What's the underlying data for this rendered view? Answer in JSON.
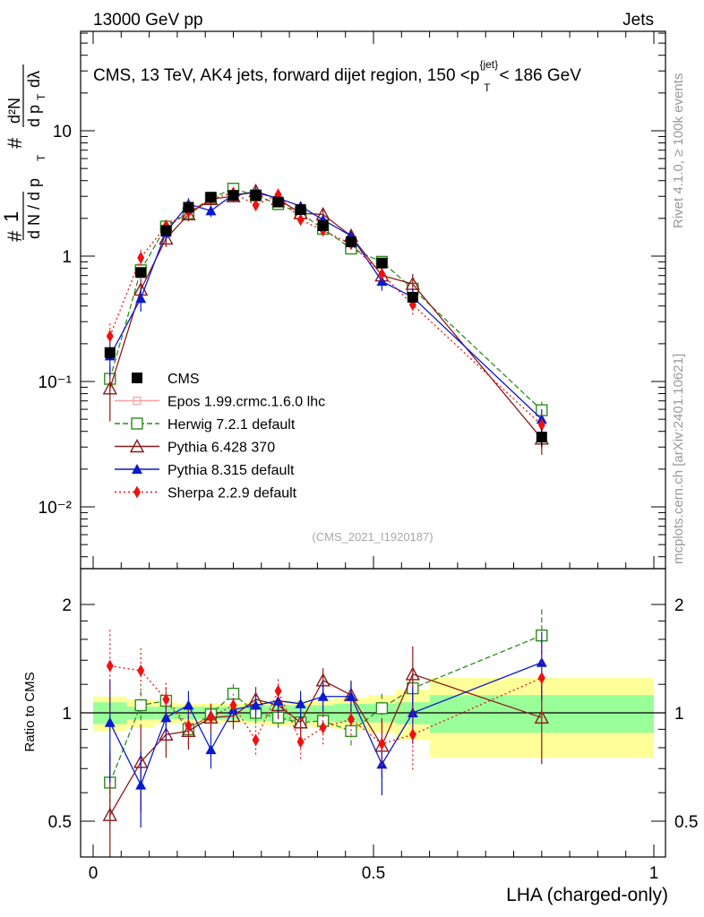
{
  "header": {
    "left": "13000 GeV pp",
    "right": "Jets",
    "plot_title": "CMS, 13 TeV, AK4 jets, forward dijet region, 150 <p",
    "title_sup": "{jet}",
    "title_sub": "T",
    "title_end": "< 186 GeV",
    "watermark": "(CMS_2021_I1920187)",
    "side_rivet": "Rivet 4.1.0, ≥ 100k events",
    "side_mcplots": "mcplots.cern.ch [arXiv:2401.10621]"
  },
  "axes": {
    "ylabel_top": "#  1 / dN / dp_T #  d²N / dp_T dλ",
    "ylabel_top_parts": {
      "hash": "#",
      "one": "1",
      "dn": "d N / d p",
      "t": "T",
      "d2n": "d²N",
      "dpdl": "d p",
      "dl": "dλ"
    },
    "ylabel_ratio": "Ratio to CMS",
    "xlabel": "LHA (charged-only)",
    "xticks": [
      "0",
      "0.5",
      "1"
    ],
    "yticks_main": [
      "10",
      "1"
    ],
    "yticks_main_pow": [
      "10⁻¹",
      "10⁻²"
    ],
    "yticks_ratio": [
      "2",
      "1",
      "0.5"
    ]
  },
  "legend": [
    {
      "key": "cms",
      "label": "CMS"
    },
    {
      "key": "epos",
      "label": "Epos 1.99.crmc.1.6.0 lhc"
    },
    {
      "key": "herwig",
      "label": "Herwig 7.2.1 default"
    },
    {
      "key": "py6",
      "label": "Pythia 6.428 370"
    },
    {
      "key": "py8",
      "label": "Pythia 8.315 default"
    },
    {
      "key": "sherpa",
      "label": "Sherpa 2.2.9 default"
    }
  ],
  "colors": {
    "cms": "#000000",
    "epos": "#f4a0a0",
    "herwig": "#2e8a1e",
    "py6": "#8b1a1a",
    "py8": "#0a1acc",
    "sherpa": "#ee1111",
    "band_inner": "#99ff99",
    "band_outer": "#ffff99"
  },
  "chart_data": {
    "type": "line",
    "title": "CMS, 13 TeV, AK4 jets, forward dijet region, 150 < p_T^{jet} < 186 GeV",
    "xlabel": "LHA (charged-only)",
    "ylabel": "1/dN/dp_T  d²N/dp_T dλ",
    "xlim": [
      0,
      1
    ],
    "ylim": [
      0.003,
      60
    ],
    "yscale": "log",
    "ratio_ylim": [
      0.4,
      2.3
    ],
    "x": [
      0.03,
      0.085,
      0.13,
      0.17,
      0.21,
      0.25,
      0.29,
      0.33,
      0.37,
      0.41,
      0.46,
      0.515,
      0.57,
      0.8
    ],
    "bin_edges": [
      0,
      0.06,
      0.11,
      0.15,
      0.19,
      0.23,
      0.27,
      0.31,
      0.35,
      0.39,
      0.43,
      0.49,
      0.54,
      0.6,
      1.0
    ],
    "series": [
      {
        "key": "cms",
        "name": "CMS",
        "values": [
          0.17,
          0.74,
          1.6,
          2.45,
          2.95,
          3.05,
          3.05,
          2.7,
          2.35,
          1.75,
          1.3,
          0.88,
          0.47,
          0.036
        ],
        "errors": [
          0.02,
          0.05,
          0.08,
          0.1,
          0.1,
          0.1,
          0.1,
          0.09,
          0.08,
          0.07,
          0.06,
          0.05,
          0.04,
          0.006
        ]
      },
      {
        "key": "herwig",
        "name": "Herwig 7.2.1 default",
        "values": [
          0.105,
          0.77,
          1.72,
          2.2,
          2.9,
          3.45,
          3.05,
          2.6,
          2.2,
          1.65,
          1.15,
          0.9,
          0.55,
          0.059
        ],
        "errors": [
          0.03,
          0.08,
          0.15,
          0.2,
          0.2,
          0.2,
          0.2,
          0.2,
          0.15,
          0.12,
          0.12,
          0.1,
          0.06,
          0.01
        ]
      },
      {
        "key": "py6",
        "name": "Pythia 6.428 370",
        "values": [
          0.088,
          0.54,
          1.38,
          2.15,
          2.85,
          3.0,
          3.3,
          2.85,
          2.2,
          2.15,
          1.45,
          0.7,
          0.6,
          0.035
        ],
        "errors": [
          0.04,
          0.12,
          0.2,
          0.25,
          0.25,
          0.25,
          0.3,
          0.25,
          0.2,
          0.2,
          0.15,
          0.12,
          0.12,
          0.009
        ]
      },
      {
        "key": "py8",
        "name": "Pythia 8.315 default",
        "values": [
          0.16,
          0.46,
          1.55,
          2.6,
          2.3,
          3.1,
          3.2,
          2.9,
          2.5,
          1.95,
          1.45,
          0.63,
          0.47,
          0.05
        ],
        "errors": [
          0.05,
          0.1,
          0.2,
          0.3,
          0.25,
          0.25,
          0.25,
          0.25,
          0.2,
          0.2,
          0.15,
          0.1,
          0.08,
          0.01
        ]
      },
      {
        "key": "sherpa",
        "name": "Sherpa 2.2.9 default",
        "values": [
          0.23,
          0.97,
          1.75,
          2.25,
          2.85,
          3.2,
          2.55,
          3.1,
          1.95,
          1.6,
          1.25,
          0.72,
          0.41,
          0.045
        ],
        "errors": [
          0.06,
          0.15,
          0.2,
          0.25,
          0.25,
          0.25,
          0.25,
          0.25,
          0.2,
          0.2,
          0.15,
          0.12,
          0.08,
          0.01
        ]
      }
    ],
    "ratio_band": {
      "inner": [
        0.07,
        0.04,
        0.04,
        0.04,
        0.04,
        0.04,
        0.05,
        0.05,
        0.05,
        0.05,
        0.06,
        0.06,
        0.07,
        0.12
      ],
      "outer": [
        0.11,
        0.09,
        0.07,
        0.06,
        0.06,
        0.06,
        0.07,
        0.08,
        0.08,
        0.09,
        0.1,
        0.12,
        0.16,
        0.25
      ]
    },
    "ratio_series": [
      {
        "key": "herwig",
        "values": [
          0.64,
          1.05,
          1.08,
          0.9,
          0.99,
          1.13,
          1.0,
          0.97,
          0.94,
          0.95,
          0.89,
          1.03,
          1.17,
          1.64
        ],
        "errors": [
          0.15,
          0.1,
          0.1,
          0.08,
          0.07,
          0.07,
          0.07,
          0.07,
          0.07,
          0.07,
          0.09,
          0.1,
          0.12,
          0.3
        ]
      },
      {
        "key": "py6",
        "values": [
          0.52,
          0.73,
          0.87,
          0.89,
          0.97,
          0.98,
          1.09,
          1.05,
          0.94,
          1.23,
          1.12,
          0.81,
          1.28,
          0.97
        ],
        "errors": [
          0.25,
          0.2,
          0.12,
          0.1,
          0.09,
          0.08,
          0.09,
          0.09,
          0.09,
          0.1,
          0.11,
          0.15,
          0.25,
          0.25
        ]
      },
      {
        "key": "py8",
        "values": [
          0.94,
          0.63,
          0.97,
          1.05,
          0.79,
          1.02,
          1.05,
          1.08,
          1.06,
          1.11,
          1.11,
          0.72,
          1.0,
          1.38
        ],
        "errors": [
          0.3,
          0.15,
          0.12,
          0.1,
          0.09,
          0.08,
          0.08,
          0.08,
          0.09,
          0.1,
          0.11,
          0.13,
          0.18,
          0.3
        ]
      },
      {
        "key": "sherpa",
        "values": [
          1.35,
          1.31,
          1.09,
          0.92,
          0.97,
          1.05,
          0.84,
          1.15,
          0.83,
          0.91,
          0.96,
          0.82,
          0.87,
          1.25
        ],
        "errors": [
          0.35,
          0.2,
          0.12,
          0.1,
          0.09,
          0.08,
          0.08,
          0.09,
          0.09,
          0.1,
          0.11,
          0.14,
          0.18,
          0.3
        ]
      }
    ]
  }
}
